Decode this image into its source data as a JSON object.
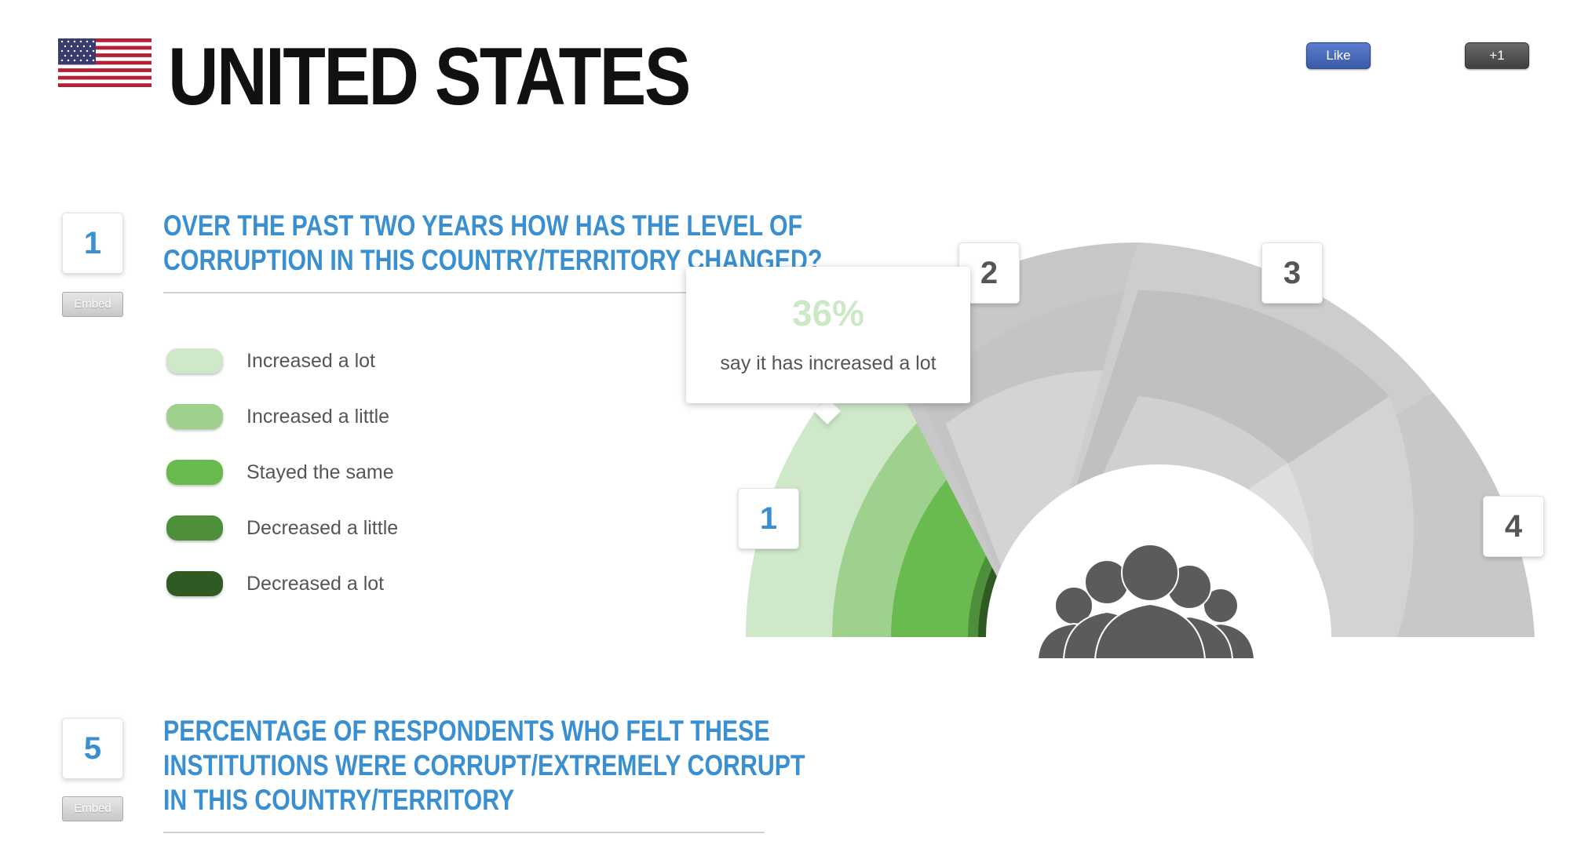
{
  "header": {
    "title": "UNITED STATES",
    "flag_icon": "us-flag-icon",
    "like_label": "Like",
    "plus_one_label": "+1"
  },
  "questions": [
    {
      "number": "1",
      "embed_label": "Embed",
      "line1": "OVER THE PAST TWO YEARS HOW HAS THE LEVEL OF",
      "line2": "CORRUPTION IN THIS COUNTRY/TERRITORY CHANGED?"
    },
    {
      "number": "5",
      "embed_label": "Embed",
      "line1": "PERCENTAGE OF RESPONDENTS WHO FELT THESE",
      "line2": "INSTITUTIONS WERE CORRUPT/EXTREMELY CORRUPT",
      "line3": "IN THIS COUNTRY/TERRITORY"
    }
  ],
  "legend": [
    {
      "label": "Increased a lot",
      "color": "#cfe8c9"
    },
    {
      "label": "Increased a little",
      "color": "#9ed18d"
    },
    {
      "label": "Stayed the same",
      "color": "#69bb4f"
    },
    {
      "label": "Decreased a little",
      "color": "#4d8f3a"
    },
    {
      "label": "Decreased a lot",
      "color": "#2f5a23"
    }
  ],
  "chart": {
    "segment_badges": [
      "1",
      "2",
      "3",
      "4"
    ],
    "active_segment": "1",
    "center_icon": "people-group-icon",
    "tooltip": {
      "value": "36%",
      "caption": "say it has increased a lot"
    }
  },
  "colors": {
    "accent": "#3a8fd1",
    "inactive_gray": "#c5c5c5"
  }
}
